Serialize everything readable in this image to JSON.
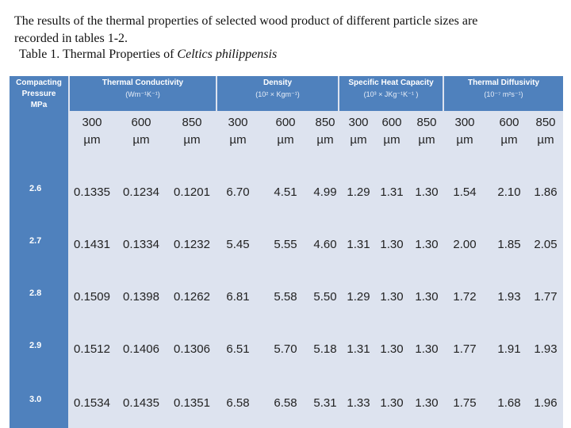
{
  "intro": {
    "line1": "The results of the thermal properties of selected wood product of different particle sizes are",
    "line2": "recorded in tables 1-2."
  },
  "caption": {
    "prefix": "Table 1. Thermal Properties of ",
    "species": "Celtics philippensis"
  },
  "header": {
    "pressure": [
      "Compacting",
      "Pressure",
      "MPa"
    ],
    "conductivity": {
      "label": "Thermal Conductivity",
      "unit": "(Wm⁻¹K⁻¹)"
    },
    "density": {
      "label": "Density",
      "unit": "(10² × Kgm⁻¹)"
    },
    "heat": {
      "label": "Specific Heat Capacity",
      "unit": "(10³ × JKg⁻¹K⁻¹ )"
    },
    "diffusivity": {
      "label": "Thermal Diffusivity",
      "unit": "(10⁻⁷ m²s⁻¹)"
    }
  },
  "size_unit": "µm",
  "sizes": [
    "300",
    "600",
    "850",
    "300",
    "600",
    "850",
    "300",
    "600",
    "850",
    "300",
    "600",
    "850"
  ],
  "rows": [
    {
      "pressure": "2.6",
      "values": [
        "0.1335",
        "0.1234",
        "0.1201",
        "6.70",
        "4.51",
        "4.99",
        "1.29",
        "1.31",
        "1.30",
        "1.54",
        "2.10",
        "1.86"
      ]
    },
    {
      "pressure": "2.7",
      "values": [
        "0.1431",
        "0.1334",
        "0.1232",
        "5.45",
        "5.55",
        "4.60",
        "1.31",
        "1.30",
        "1.30",
        "2.00",
        "1.85",
        "2.05"
      ]
    },
    {
      "pressure": "2.8",
      "values": [
        "0.1509",
        "0.1398",
        "0.1262",
        "6.81",
        "5.58",
        "5.50",
        "1.29",
        "1.30",
        "1.30",
        "1.72",
        "1.93",
        "1.77"
      ]
    },
    {
      "pressure": "2.9",
      "values": [
        "0.1512",
        "0.1406",
        "0.1306",
        "6.51",
        "5.70",
        "5.18",
        "1.31",
        "1.30",
        "1.30",
        "1.77",
        "1.91",
        "1.93"
      ]
    },
    {
      "pressure": "3.0",
      "values": [
        "0.1534",
        "0.1435",
        "0.1351",
        "6.58",
        "6.58",
        "5.31",
        "1.33",
        "1.30",
        "1.30",
        "1.75",
        "1.68",
        "1.96"
      ]
    }
  ],
  "colors": {
    "header": "#4f81bd",
    "body": "#dde3ef"
  }
}
